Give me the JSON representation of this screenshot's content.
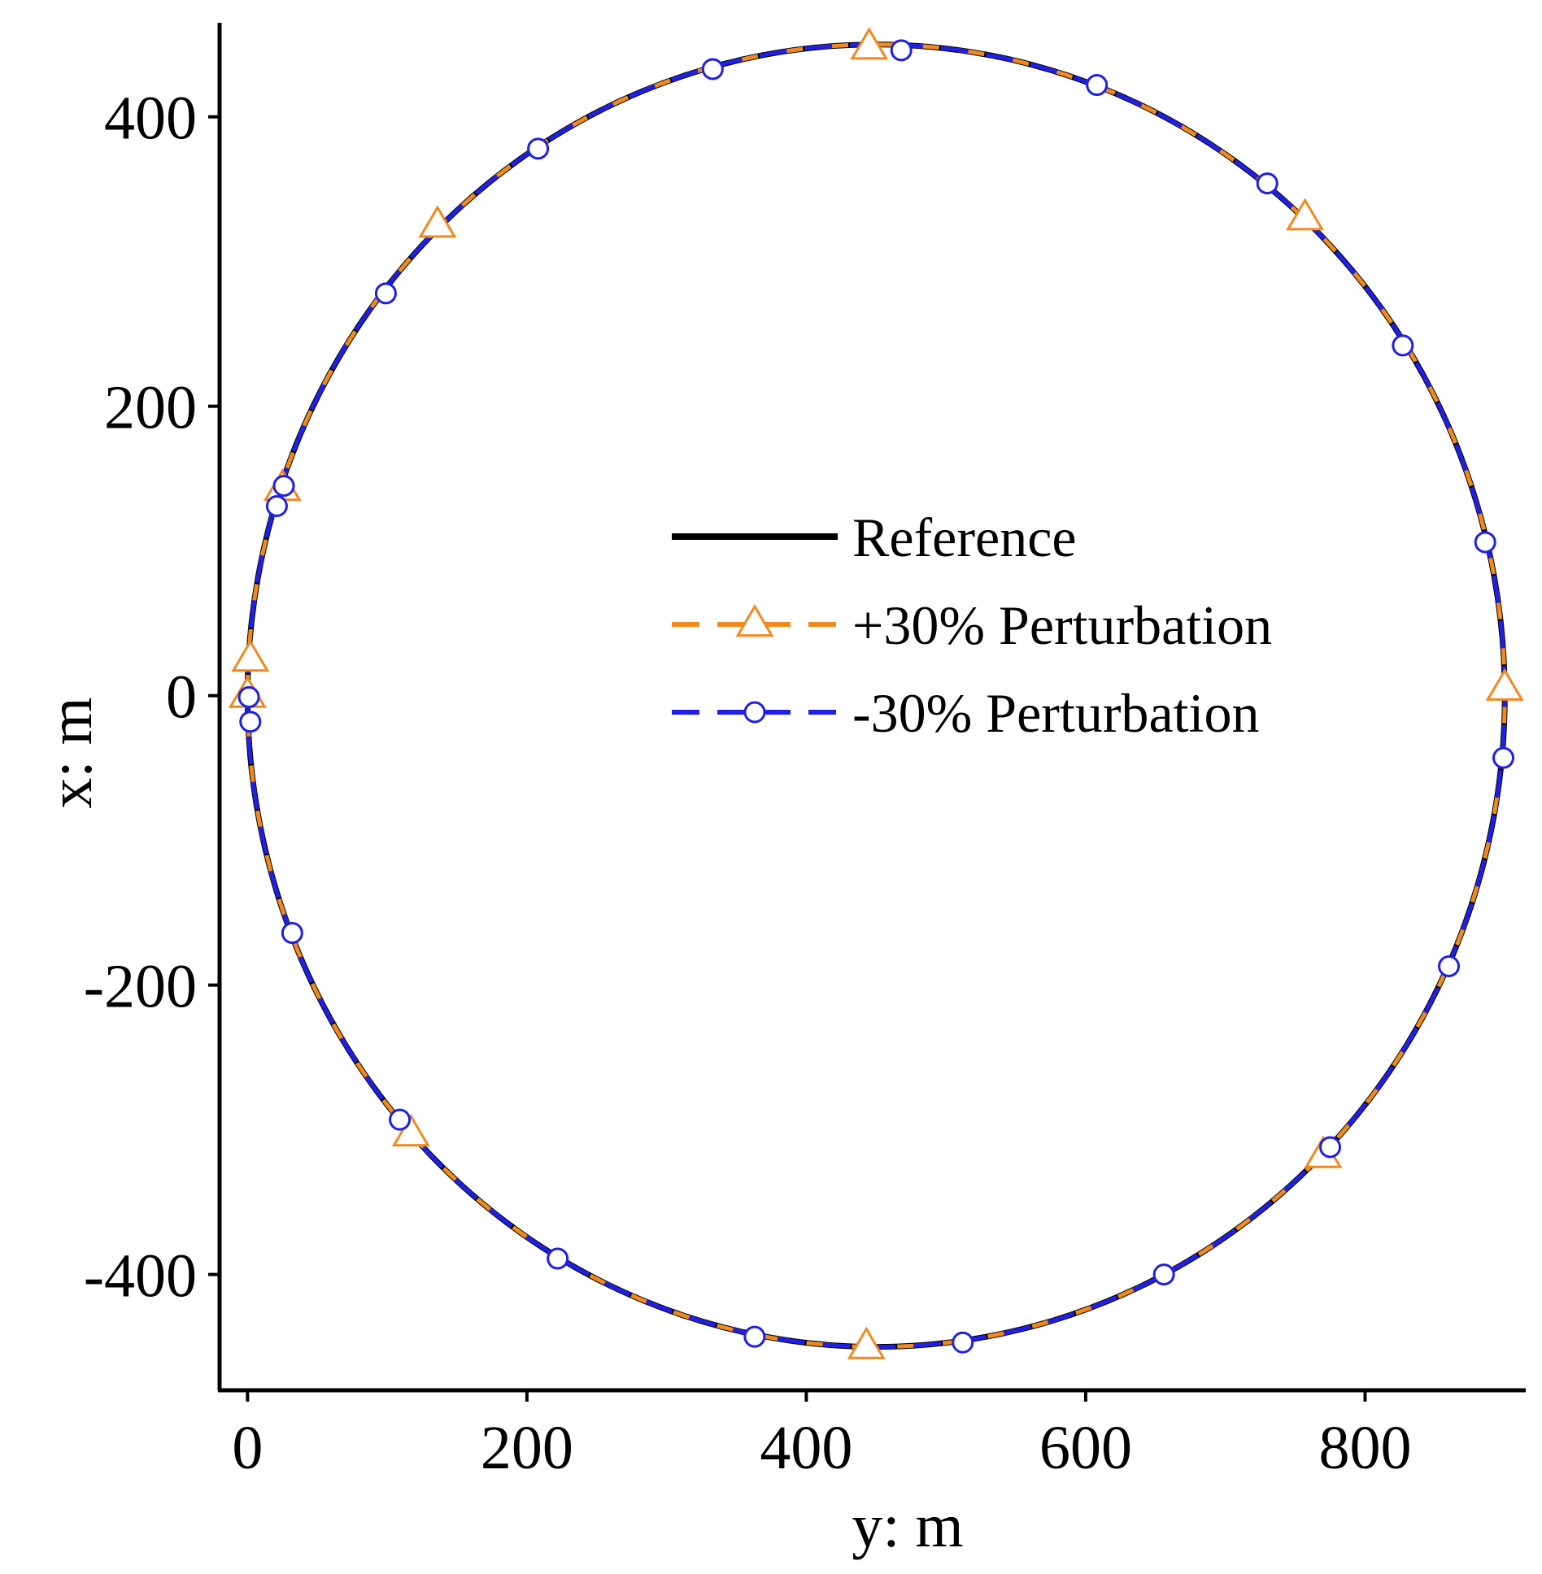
{
  "chart_data": {
    "type": "line",
    "title": "",
    "xlabel": "y: m",
    "ylabel": "x: m",
    "xlim": [
      -20,
      915
    ],
    "ylim": [
      -480,
      465
    ],
    "xticks": [
      0,
      200,
      400,
      600,
      800
    ],
    "yticks": [
      -400,
      -200,
      0,
      200,
      400
    ],
    "xtick_labels": [
      "0",
      "200",
      "400",
      "600",
      "800"
    ],
    "ytick_labels": [
      "-400",
      "-200",
      "0",
      "200",
      "400"
    ],
    "grid": false,
    "legend_position": "center-right",
    "series": [
      {
        "name": "Reference",
        "color": "#000000",
        "style": "solid",
        "marker": "none",
        "shape": "circle",
        "center": [
          450,
          0
        ],
        "radius": 450
      },
      {
        "name": "+30% Perturbation",
        "color": "#f08a1e",
        "style": "dashed",
        "marker": "triangle",
        "shape": "circle",
        "center": [
          450,
          0
        ],
        "radius": 450,
        "markers": [
          [
            445,
            448
          ],
          [
            136,
            325
          ],
          [
            25,
            143
          ],
          [
            2,
            25
          ],
          [
            0,
            0
          ],
          [
            900,
            5
          ],
          [
            757,
            330
          ],
          [
            770,
            -318
          ],
          [
            443,
            -450
          ],
          [
            117,
            -303
          ]
        ]
      },
      {
        "name": "-30% Perturbation",
        "color": "#1f1fe6",
        "style": "dashed",
        "marker": "circle",
        "shape": "circle",
        "center": [
          450,
          0
        ],
        "radius": 450,
        "markers": [
          [
            468,
            446
          ],
          [
            333,
            433
          ],
          [
            608,
            422
          ],
          [
            208,
            378
          ],
          [
            730,
            354
          ],
          [
            99,
            278
          ],
          [
            827,
            242
          ],
          [
            26,
            145
          ],
          [
            21,
            131
          ],
          [
            886,
            106
          ],
          [
            1,
            -1
          ],
          [
            2,
            -18
          ],
          [
            899,
            -43
          ],
          [
            32,
            -164
          ],
          [
            860,
            -187
          ],
          [
            109,
            -293
          ],
          [
            775,
            -312
          ],
          [
            222,
            -389
          ],
          [
            656,
            -400
          ],
          [
            363,
            -443
          ],
          [
            512,
            -447
          ]
        ]
      }
    ]
  }
}
